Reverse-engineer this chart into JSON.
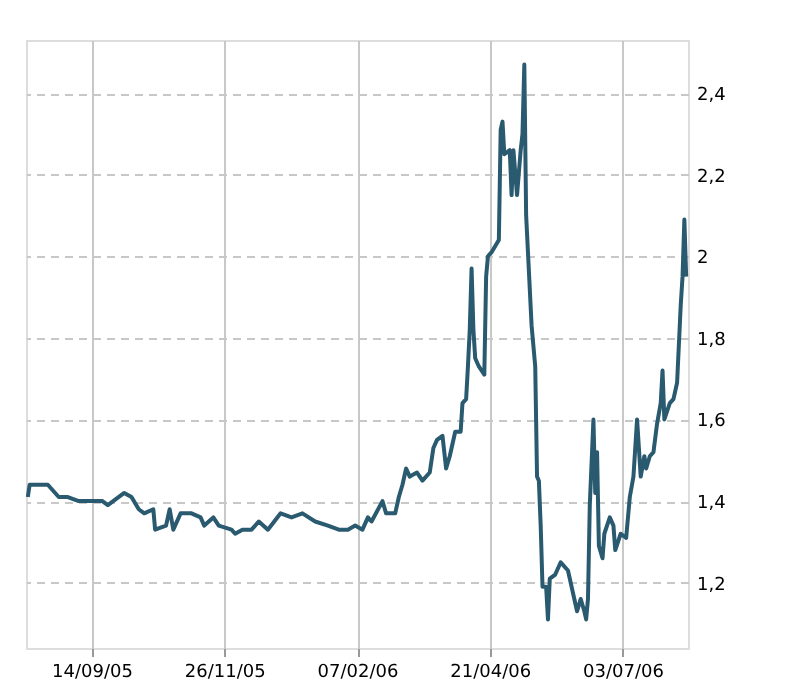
{
  "chart_data": {
    "type": "line",
    "x": [
      "2005-08-10",
      "2005-08-11",
      "2005-08-21",
      "2005-08-27",
      "2005-09-01",
      "2005-09-07",
      "2005-09-14",
      "2005-09-20",
      "2005-09-23",
      "2005-10-02",
      "2005-10-06",
      "2005-10-10",
      "2005-10-13",
      "2005-10-18",
      "2005-10-19",
      "2005-10-25",
      "2005-10-27",
      "2005-10-29",
      "2005-11-02",
      "2005-11-08",
      "2005-11-13",
      "2005-11-15",
      "2005-11-20",
      "2005-11-23",
      "2005-11-30",
      "2005-12-02",
      "2005-12-06",
      "2005-12-11",
      "2005-12-15",
      "2005-12-20",
      "2005-12-27",
      "2006-01-02",
      "2006-01-08",
      "2006-01-15",
      "2006-01-22",
      "2006-01-28",
      "2006-02-02",
      "2006-02-06",
      "2006-02-10",
      "2006-02-13",
      "2006-02-15",
      "2006-02-21",
      "2006-02-23",
      "2006-02-28",
      "2006-03-02",
      "2006-03-04",
      "2006-03-06",
      "2006-03-08",
      "2006-03-12",
      "2006-03-15",
      "2006-03-19",
      "2006-03-21",
      "2006-03-23",
      "2006-03-26",
      "2006-03-28",
      "2006-03-30",
      "2006-04-02",
      "2006-04-05",
      "2006-04-06",
      "2006-04-08",
      "2006-04-09",
      "2006-04-10",
      "2006-04-11",
      "2006-04-12",
      "2006-04-13",
      "2006-04-15",
      "2006-04-18",
      "2006-04-19",
      "2006-04-20",
      "2006-04-22",
      "2006-04-26",
      "2006-04-27",
      "2006-04-28",
      "2006-04-29",
      "2006-05-02",
      "2006-05-03",
      "2006-05-04",
      "2006-05-06",
      "2006-05-08",
      "2006-05-09",
      "2006-05-10",
      "2006-05-11",
      "2006-05-12",
      "2006-05-14",
      "2006-05-16",
      "2006-05-17",
      "2006-05-18",
      "2006-05-19",
      "2006-05-20",
      "2006-05-22",
      "2006-05-23",
      "2006-05-24",
      "2006-05-27",
      "2006-05-30",
      "2006-06-03",
      "2006-06-06",
      "2006-06-08",
      "2006-06-10",
      "2006-06-12",
      "2006-06-13",
      "2006-06-14",
      "2006-06-15",
      "2006-06-17",
      "2006-06-18",
      "2006-06-19",
      "2006-06-20",
      "2006-06-22",
      "2006-06-23",
      "2006-06-26",
      "2006-06-28",
      "2006-06-29",
      "2006-07-02",
      "2006-07-05",
      "2006-07-07",
      "2006-07-09",
      "2006-07-11",
      "2006-07-13",
      "2006-07-15",
      "2006-07-16",
      "2006-07-18",
      "2006-07-20",
      "2006-07-22",
      "2006-07-24",
      "2006-07-25",
      "2006-07-26",
      "2006-07-29",
      "2006-07-31",
      "2006-08-02",
      "2006-08-04",
      "2006-08-05",
      "2006-08-06",
      "2006-08-07"
    ],
    "series": [
      {
        "color": "#2a5a70",
        "values": [
          1.41,
          1.44,
          1.44,
          1.41,
          1.41,
          1.4,
          1.4,
          1.4,
          1.39,
          1.42,
          1.41,
          1.38,
          1.37,
          1.38,
          1.33,
          1.34,
          1.38,
          1.33,
          1.37,
          1.37,
          1.36,
          1.34,
          1.36,
          1.34,
          1.33,
          1.32,
          1.33,
          1.33,
          1.35,
          1.33,
          1.37,
          1.36,
          1.37,
          1.35,
          1.34,
          1.33,
          1.33,
          1.34,
          1.33,
          1.36,
          1.35,
          1.4,
          1.37,
          1.37,
          1.41,
          1.44,
          1.48,
          1.46,
          1.47,
          1.45,
          1.47,
          1.53,
          1.55,
          1.56,
          1.48,
          1.51,
          1.57,
          1.57,
          1.64,
          1.65,
          1.73,
          1.82,
          1.97,
          1.82,
          1.75,
          1.73,
          1.71,
          1.95,
          2.0,
          2.01,
          2.04,
          2.31,
          2.33,
          2.25,
          2.26,
          2.15,
          2.26,
          2.15,
          2.26,
          2.3,
          2.47,
          2.1,
          2.01,
          1.83,
          1.73,
          1.46,
          1.45,
          1.34,
          1.19,
          1.19,
          1.11,
          1.21,
          1.22,
          1.25,
          1.23,
          1.17,
          1.13,
          1.16,
          1.13,
          1.11,
          1.16,
          1.39,
          1.6,
          1.42,
          1.52,
          1.29,
          1.26,
          1.32,
          1.36,
          1.34,
          1.28,
          1.32,
          1.31,
          1.41,
          1.46,
          1.6,
          1.46,
          1.51,
          1.48,
          1.51,
          1.52,
          1.59,
          1.64,
          1.72,
          1.6,
          1.64,
          1.65,
          1.69,
          1.88,
          1.95,
          2.09,
          1.95
        ]
      }
    ],
    "xlim": [
      "2005-08-09",
      "2006-08-08"
    ],
    "xticks": [
      {
        "value": "2005-09-14",
        "label": "14/09/05"
      },
      {
        "value": "2005-11-26",
        "label": "26/11/05"
      },
      {
        "value": "2006-02-07",
        "label": "07/02/06"
      },
      {
        "value": "2006-04-21",
        "label": "21/04/06"
      },
      {
        "value": "2006-07-03",
        "label": "03/07/06"
      }
    ],
    "ylim": [
      1.04,
      2.53
    ],
    "yticks": [
      {
        "value": 1.2,
        "label": "1,2"
      },
      {
        "value": 1.4,
        "label": "1,4"
      },
      {
        "value": 1.6,
        "label": "1,6"
      },
      {
        "value": 1.8,
        "label": "1,8"
      },
      2,
      {
        "value": 2.2,
        "label": "2,2"
      },
      {
        "value": 2.4,
        "label": "2,4"
      }
    ],
    "grid": true,
    "legend": false,
    "marker": "none",
    "line_style": "solid"
  }
}
